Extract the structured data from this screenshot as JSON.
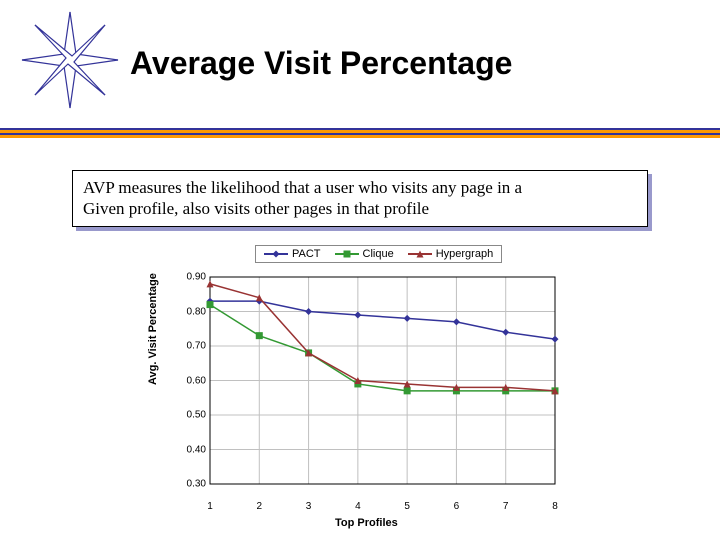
{
  "slide": {
    "title": "Average Visit Percentage",
    "description_line1": "AVP measures the likelihood that a user who visits any page in a",
    "description_line2": "Given profile, also visits other pages in that profile",
    "logo": {
      "type": "8-point-star",
      "stroke": "#333399",
      "fill": "#ffffff"
    },
    "rule_colors": [
      "#333399",
      "#ff9900",
      "#333399",
      "#ff9900"
    ]
  },
  "chart": {
    "type": "line",
    "x_label": "Top Profiles",
    "y_label": "Avg. Visit Percentage",
    "background_color": "#ffffff",
    "grid_color": "#c0c0c0",
    "axis_color": "#000000",
    "x_ticks": [
      1,
      2,
      3,
      4,
      5,
      6,
      7,
      8
    ],
    "y_ticks": [
      0.3,
      0.4,
      0.5,
      0.6,
      0.7,
      0.8,
      0.9
    ],
    "ylim": [
      0.3,
      0.9
    ],
    "xlim": [
      1,
      8
    ],
    "series": [
      {
        "name": "PACT",
        "color": "#333399",
        "marker": "diamond",
        "y": [
          0.83,
          0.83,
          0.8,
          0.79,
          0.78,
          0.77,
          0.74,
          0.72
        ]
      },
      {
        "name": "Clique",
        "color": "#339933",
        "marker": "square",
        "y": [
          0.82,
          0.73,
          0.68,
          0.59,
          0.57,
          0.57,
          0.57,
          0.57
        ]
      },
      {
        "name": "Hypergraph",
        "color": "#993333",
        "marker": "triangle",
        "y": [
          0.88,
          0.84,
          0.68,
          0.6,
          0.59,
          0.58,
          0.58,
          0.57
        ]
      }
    ],
    "legend_position": "top",
    "line_width": 1.5,
    "marker_size": 7,
    "label_fontsize": 11
  }
}
